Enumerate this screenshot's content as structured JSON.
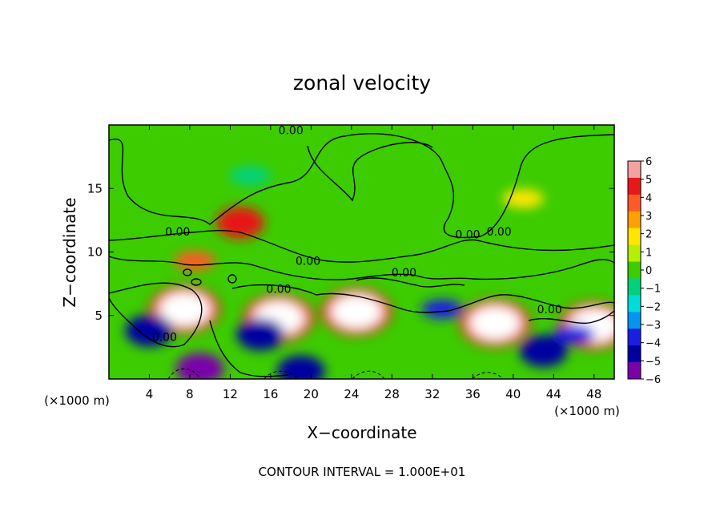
{
  "chart_data": {
    "type": "heatmap",
    "title": "zonal velocity",
    "xlabel": "X−coordinate",
    "ylabel": "Z−coordinate",
    "x_unit_left": "(×1000 m)",
    "x_unit_right": "(×1000 m)",
    "footer": "CONTOUR INTERVAL = 1.000E+01",
    "xlim": [
      0,
      50
    ],
    "ylim": [
      0,
      20
    ],
    "x_ticks": [
      4,
      8,
      12,
      16,
      20,
      24,
      28,
      32,
      36,
      40,
      44,
      48
    ],
    "y_ticks": [
      5,
      10,
      15
    ],
    "colorbar": {
      "levels": [
        6,
        5,
        4,
        3,
        2,
        1,
        0,
        -1,
        -2,
        -3,
        -4,
        -5,
        -6
      ],
      "colors": [
        "#f6a0a0",
        "#e81818",
        "#ff5a28",
        "#ffa000",
        "#ffe600",
        "#b4f000",
        "#3ccc00",
        "#00d27c",
        "#00dcdc",
        "#0096f0",
        "#1a1ee0",
        "#0000a0",
        "#7a00aa"
      ]
    },
    "contour_labels": [
      {
        "text": "0.00",
        "x": 18.0,
        "y": 19.6
      },
      {
        "text": "0.00",
        "x": 6.8,
        "y": 11.6
      },
      {
        "text": "0.00",
        "x": 19.7,
        "y": 9.3
      },
      {
        "text": "0.00",
        "x": 29.2,
        "y": 8.4
      },
      {
        "text": "0.00",
        "x": 16.8,
        "y": 7.1
      },
      {
        "text": "0.00",
        "x": 35.5,
        "y": 11.4
      },
      {
        "text": "0.00",
        "x": 38.6,
        "y": 11.6
      },
      {
        "text": "0.00",
        "x": 43.6,
        "y": 5.5
      },
      {
        "text": "0.00",
        "x": 5.5,
        "y": 3.3
      }
    ],
    "field_features": [
      {
        "x": 7.5,
        "y": 5.5,
        "value": 9
      },
      {
        "x": 16.8,
        "y": 4.8,
        "value": 9
      },
      {
        "x": 24.5,
        "y": 5.3,
        "value": 9
      },
      {
        "x": 38.2,
        "y": 4.4,
        "value": 7
      },
      {
        "x": 48.0,
        "y": 4.2,
        "value": 9
      },
      {
        "x": 13.0,
        "y": 12.3,
        "value": 5
      },
      {
        "x": 8.5,
        "y": 9.3,
        "value": 4
      },
      {
        "x": 41.0,
        "y": 14.2,
        "value": 2
      },
      {
        "x": 4.0,
        "y": 3.8,
        "value": -5
      },
      {
        "x": 15.0,
        "y": 3.5,
        "value": -5
      },
      {
        "x": 33.0,
        "y": 5.5,
        "value": -4
      },
      {
        "x": 46.0,
        "y": 3.5,
        "value": -4
      },
      {
        "x": 9.0,
        "y": 0.8,
        "value": -6
      },
      {
        "x": 19.0,
        "y": 0.6,
        "value": -5
      },
      {
        "x": 43.0,
        "y": 2.2,
        "value": -5
      },
      {
        "x": 14.0,
        "y": 16.0,
        "value": -1
      }
    ]
  }
}
